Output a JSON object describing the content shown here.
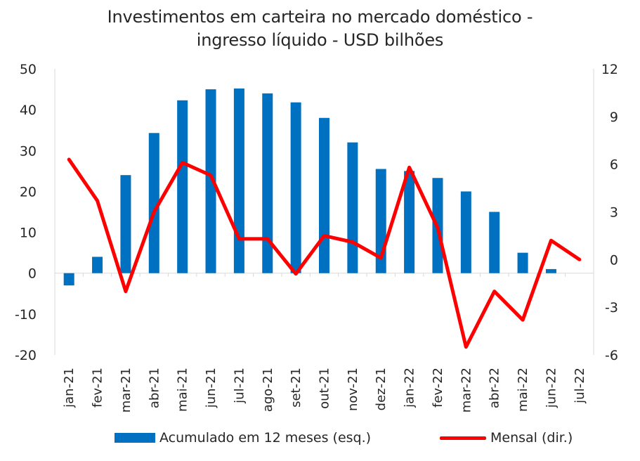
{
  "chart_data": {
    "type": "bar+line",
    "title": [
      "Investimentos em carteira no mercado doméstico -",
      "ingresso líquido - USD bilhões"
    ],
    "categories": [
      "jan-21",
      "fev-21",
      "mar-21",
      "abr-21",
      "mai-21",
      "jun-21",
      "jul-21",
      "ago-21",
      "set-21",
      "out-21",
      "nov-21",
      "dez-21",
      "jan-22",
      "fev-22",
      "mar-22",
      "abr-22",
      "mai-22",
      "jun-22",
      "jul-22"
    ],
    "series": [
      {
        "name": "Acumulado em 12 meses (esq.)",
        "type": "bar",
        "axis": "left",
        "color": "#0070c0",
        "values": [
          -3,
          4,
          24,
          34.3,
          42.3,
          45,
          45.2,
          44,
          41.8,
          38,
          32,
          25.5,
          25,
          23.3,
          20,
          15,
          5,
          1,
          0
        ]
      },
      {
        "name": "Mensal (dir.)",
        "type": "line",
        "axis": "right",
        "color": "#ff0000",
        "values": [
          6.3,
          3.7,
          -2,
          3,
          6.1,
          5.3,
          1.3,
          1.3,
          -0.9,
          1.5,
          1.1,
          0.1,
          5.8,
          2,
          -5.5,
          -2,
          -3.8,
          1.2,
          0
        ]
      }
    ],
    "y_left": {
      "min": -20,
      "max": 50,
      "ticks": [
        50,
        40,
        30,
        20,
        10,
        0,
        -10,
        -20
      ]
    },
    "y_right": {
      "min": -6,
      "max": 12,
      "ticks": [
        12,
        9,
        6,
        3,
        0,
        -3,
        -6
      ]
    },
    "legend": {
      "position": "bottom",
      "items": [
        "Acumulado em 12 meses (esq.)",
        "Mensal (dir.)"
      ]
    }
  }
}
